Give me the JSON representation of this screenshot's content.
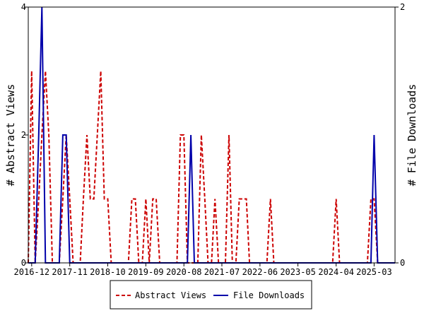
{
  "chart_data": {
    "type": "line",
    "title": "",
    "xlabel": "",
    "ylabel": "# Abstract Views",
    "y2label": "# File Downloads",
    "xlim": [
      "2016-11-01",
      "2025-09-01"
    ],
    "ylim": [
      0,
      4
    ],
    "y2lim": [
      0,
      2
    ],
    "x_ticks": [
      "2016-12",
      "2017-11",
      "2018-10",
      "2019-09",
      "2020-08",
      "2021-07",
      "2022-06",
      "2023-05",
      "2024-04",
      "2025-03"
    ],
    "y_ticks": [
      0,
      2,
      4
    ],
    "y2_ticks": [
      0,
      2
    ],
    "grid": false,
    "legend_position": "bottom",
    "series": [
      {
        "name": "Abstract Views",
        "axis": "left",
        "color": "#cc0000",
        "style": "dashed",
        "points": [
          [
            "2016-11-01",
            0
          ],
          [
            "2016-12-01",
            3
          ],
          [
            "2017-01-01",
            0
          ],
          [
            "2017-02-01",
            1
          ],
          [
            "2017-03-01",
            2
          ],
          [
            "2017-04-01",
            3
          ],
          [
            "2017-05-01",
            2
          ],
          [
            "2017-06-01",
            0
          ],
          [
            "2017-07-01",
            0
          ],
          [
            "2017-08-01",
            0
          ],
          [
            "2017-09-01",
            1
          ],
          [
            "2017-10-01",
            2
          ],
          [
            "2017-11-01",
            1
          ],
          [
            "2017-12-01",
            0
          ],
          [
            "2018-01-01",
            0
          ],
          [
            "2018-02-01",
            0
          ],
          [
            "2018-03-01",
            1
          ],
          [
            "2018-04-01",
            2
          ],
          [
            "2018-05-01",
            1
          ],
          [
            "2018-06-01",
            1
          ],
          [
            "2018-07-01",
            2
          ],
          [
            "2018-08-01",
            3
          ],
          [
            "2018-09-01",
            1
          ],
          [
            "2018-10-01",
            1
          ],
          [
            "2018-11-01",
            0
          ],
          [
            "2018-12-01",
            0
          ],
          [
            "2019-01-01",
            0
          ],
          [
            "2019-02-01",
            0
          ],
          [
            "2019-03-01",
            0
          ],
          [
            "2019-04-01",
            0
          ],
          [
            "2019-05-01",
            1
          ],
          [
            "2019-06-01",
            1
          ],
          [
            "2019-07-01",
            0
          ],
          [
            "2019-08-01",
            0
          ],
          [
            "2019-09-01",
            1
          ],
          [
            "2019-10-01",
            0
          ],
          [
            "2019-11-01",
            1
          ],
          [
            "2019-12-01",
            1
          ],
          [
            "2020-01-01",
            0
          ],
          [
            "2020-02-01",
            0
          ],
          [
            "2020-03-01",
            0
          ],
          [
            "2020-04-01",
            0
          ],
          [
            "2020-05-01",
            0
          ],
          [
            "2020-06-01",
            0
          ],
          [
            "2020-07-01",
            2
          ],
          [
            "2020-08-01",
            2
          ],
          [
            "2020-09-01",
            0
          ],
          [
            "2020-10-01",
            0
          ],
          [
            "2020-11-01",
            0
          ],
          [
            "2020-12-01",
            0
          ],
          [
            "2021-01-01",
            2
          ],
          [
            "2021-02-01",
            1
          ],
          [
            "2021-03-01",
            0
          ],
          [
            "2021-04-01",
            0
          ],
          [
            "2021-05-01",
            1
          ],
          [
            "2021-06-01",
            0
          ],
          [
            "2021-07-01",
            0
          ],
          [
            "2021-08-01",
            0
          ],
          [
            "2021-09-01",
            2
          ],
          [
            "2021-10-01",
            0
          ],
          [
            "2021-11-01",
            0
          ],
          [
            "2021-12-01",
            1
          ],
          [
            "2022-01-01",
            1
          ],
          [
            "2022-02-01",
            1
          ],
          [
            "2022-03-01",
            0
          ],
          [
            "2022-04-01",
            0
          ],
          [
            "2022-05-01",
            0
          ],
          [
            "2022-06-01",
            0
          ],
          [
            "2022-07-01",
            0
          ],
          [
            "2022-08-01",
            0
          ],
          [
            "2022-09-01",
            1
          ],
          [
            "2022-10-01",
            0
          ],
          [
            "2024-03-01",
            0
          ],
          [
            "2024-04-01",
            1
          ],
          [
            "2024-05-01",
            0
          ],
          [
            "2025-01-01",
            0
          ],
          [
            "2025-02-01",
            1
          ],
          [
            "2025-03-01",
            1
          ],
          [
            "2025-04-01",
            0
          ],
          [
            "2025-09-01",
            0
          ]
        ]
      },
      {
        "name": "File Downloads",
        "axis": "right",
        "color": "#0000aa",
        "style": "solid",
        "points": [
          [
            "2016-11-01",
            0
          ],
          [
            "2017-01-01",
            0
          ],
          [
            "2017-02-01",
            1
          ],
          [
            "2017-03-01",
            2
          ],
          [
            "2017-04-01",
            0
          ],
          [
            "2017-05-01",
            0
          ],
          [
            "2017-06-01",
            0
          ],
          [
            "2017-07-01",
            0
          ],
          [
            "2017-08-01",
            0
          ],
          [
            "2017-09-01",
            1
          ],
          [
            "2017-10-01",
            1
          ],
          [
            "2017-11-01",
            0
          ],
          [
            "2020-09-01",
            0
          ],
          [
            "2020-10-01",
            1
          ],
          [
            "2020-11-01",
            0
          ],
          [
            "2025-02-01",
            0
          ],
          [
            "2025-03-01",
            1
          ],
          [
            "2025-04-01",
            0
          ],
          [
            "2025-09-01",
            0
          ]
        ]
      }
    ]
  },
  "legend": {
    "items": [
      {
        "label": "Abstract Views",
        "color": "#cc0000",
        "style": "dashed"
      },
      {
        "label": "File Downloads",
        "color": "#0000aa",
        "style": "solid"
      }
    ]
  }
}
